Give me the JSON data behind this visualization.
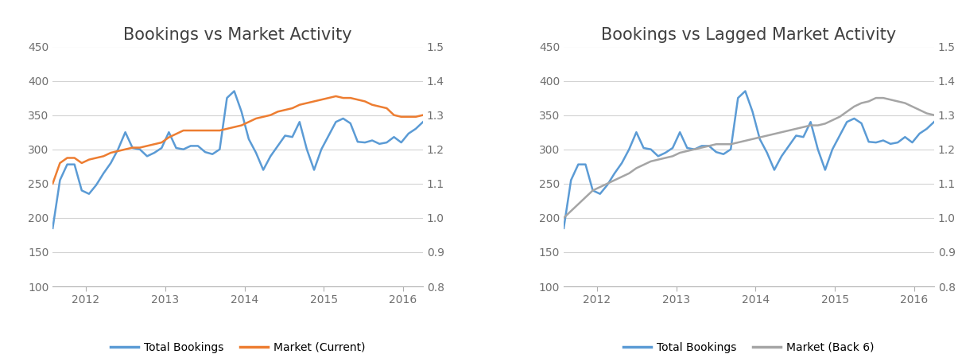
{
  "title1": "Bookings vs Market Activity",
  "title2": "Bookings vs Lagged Market Activity",
  "legend1": [
    "Total Bookings",
    "Market (Current)"
  ],
  "legend2": [
    "Total Bookings",
    "Market (Back 6)"
  ],
  "color_bookings": "#5B9BD5",
  "color_market_current": "#ED7D31",
  "color_market_back6": "#A5A5A5",
  "left_ylim": [
    100,
    450
  ],
  "right_ylim": [
    0.8,
    1.5
  ],
  "left_yticks": [
    100,
    150,
    200,
    250,
    300,
    350,
    400,
    450
  ],
  "right_yticks": [
    0.8,
    0.9,
    1.0,
    1.1,
    1.2,
    1.3,
    1.4,
    1.5
  ],
  "bookings": [
    185,
    255,
    278,
    278,
    240,
    235,
    248,
    265,
    280,
    300,
    325,
    302,
    300,
    290,
    295,
    302,
    325,
    302,
    300,
    305,
    305,
    296,
    293,
    300,
    375,
    385,
    355,
    315,
    295,
    270,
    290,
    305,
    320,
    318,
    340,
    300,
    270,
    300,
    320,
    340,
    345,
    338,
    311,
    310,
    313,
    308,
    310,
    318,
    310,
    323,
    330,
    340
  ],
  "market_current": [
    1.1,
    1.16,
    1.175,
    1.175,
    1.16,
    1.17,
    1.175,
    1.18,
    1.19,
    1.195,
    1.2,
    1.205,
    1.205,
    1.21,
    1.215,
    1.22,
    1.235,
    1.245,
    1.255,
    1.255,
    1.255,
    1.255,
    1.255,
    1.255,
    1.26,
    1.265,
    1.27,
    1.28,
    1.29,
    1.295,
    1.3,
    1.31,
    1.315,
    1.32,
    1.33,
    1.335,
    1.34,
    1.345,
    1.35,
    1.355,
    1.35,
    1.35,
    1.345,
    1.34,
    1.33,
    1.325,
    1.32,
    1.3,
    1.295,
    1.295,
    1.295,
    1.3
  ],
  "market_back6": [
    1.0,
    1.02,
    1.04,
    1.06,
    1.08,
    1.09,
    1.1,
    1.11,
    1.12,
    1.13,
    1.145,
    1.155,
    1.165,
    1.17,
    1.175,
    1.18,
    1.19,
    1.195,
    1.2,
    1.205,
    1.21,
    1.215,
    1.215,
    1.215,
    1.22,
    1.225,
    1.23,
    1.235,
    1.24,
    1.245,
    1.25,
    1.255,
    1.26,
    1.265,
    1.27,
    1.27,
    1.275,
    1.285,
    1.295,
    1.31,
    1.325,
    1.335,
    1.34,
    1.35,
    1.35,
    1.345,
    1.34,
    1.335,
    1.325,
    1.315,
    1.305,
    1.3
  ],
  "n_points": 52,
  "x_start_year": 2011.583,
  "x_end_year": 2016.25,
  "xtick_years": [
    2012,
    2013,
    2014,
    2015,
    2016
  ],
  "title_fontsize": 15,
  "tick_fontsize": 10,
  "legend_fontsize": 10,
  "line_width": 1.8,
  "background_color": "#FFFFFF",
  "grid_color": "#D3D3D3"
}
